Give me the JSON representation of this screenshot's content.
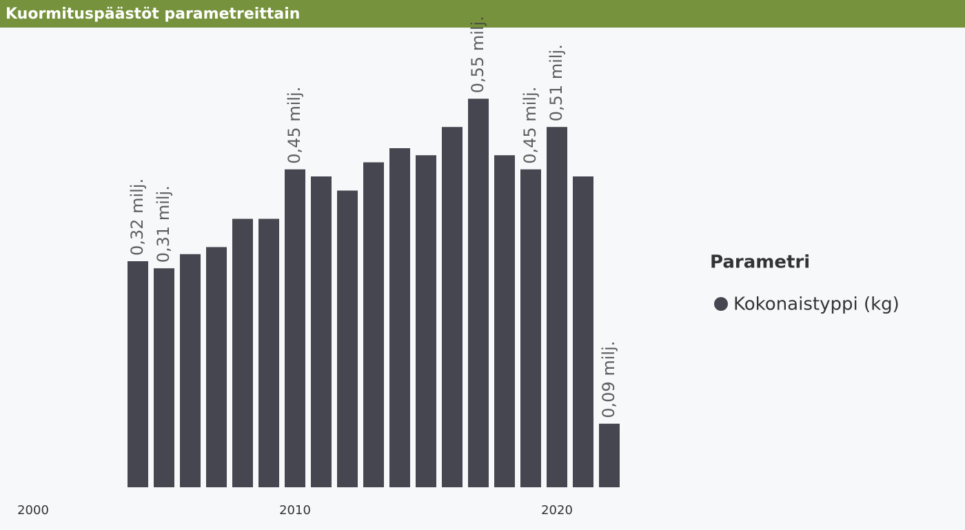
{
  "chart_data": {
    "type": "bar",
    "title": "Kuormituspäästöt parametreittain",
    "x": [
      2004,
      2005,
      2006,
      2007,
      2008,
      2009,
      2010,
      2011,
      2012,
      2013,
      2014,
      2015,
      2016,
      2017,
      2018,
      2019,
      2020,
      2021,
      2022
    ],
    "xlim": [
      2000,
      2023
    ],
    "xticks": [
      2000,
      2010,
      2020
    ],
    "legend_title": "Parametri",
    "legend": "right",
    "series": [
      {
        "name": "Kokonaistyppi (kg)",
        "color": "#464650",
        "values": [
          0.32,
          0.31,
          0.33,
          0.34,
          0.38,
          0.38,
          0.45,
          0.44,
          0.42,
          0.46,
          0.48,
          0.47,
          0.51,
          0.55,
          0.47,
          0.45,
          0.51,
          0.44,
          0.09
        ],
        "value_labels": [
          "0,32 milj.",
          "0,31 milj.",
          null,
          null,
          null,
          null,
          "0,45 milj.",
          null,
          null,
          null,
          null,
          null,
          null,
          "0,55 milj.",
          null,
          "0,45 milj.",
          "0,51 milj.",
          null,
          "0,09 milj."
        ]
      }
    ]
  }
}
